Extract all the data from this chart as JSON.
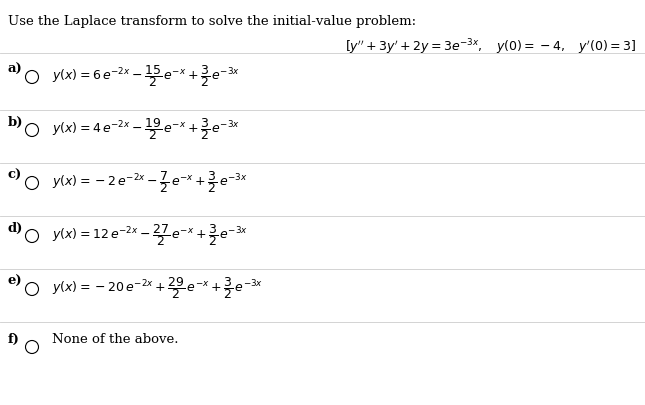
{
  "title": "Use the Laplace transform to solve the initial-value problem:",
  "problem": "$[y'' + 3y' + 2y = 3e^{-3x}, \\quad y(0) = -4, \\quad y'(0) = 3]$",
  "options": [
    {
      "label": "a)",
      "formula": "$y(x) = 6\\, e^{-2x} - \\dfrac{15}{2}\\, e^{-x} + \\dfrac{3}{2}\\, e^{-3x}$"
    },
    {
      "label": "b)",
      "formula": "$y(x) = 4\\, e^{-2x} - \\dfrac{19}{2}\\, e^{-x} + \\dfrac{3}{2}\\, e^{-3x}$"
    },
    {
      "label": "c)",
      "formula": "$y(x) = -2\\, e^{-2x} - \\dfrac{7}{2}\\, e^{-x} + \\dfrac{3}{2}\\, e^{-3x}$"
    },
    {
      "label": "d)",
      "formula": "$y(x) = 12\\, e^{-2x} - \\dfrac{27}{2}\\, e^{-x} + \\dfrac{3}{2}\\, e^{-3x}$"
    },
    {
      "label": "e)",
      "formula": "$y(x) = -20\\, e^{-2x} + \\dfrac{29}{2}\\, e^{-x} + \\dfrac{3}{2}\\, e^{-3x}$"
    },
    {
      "label": "f)",
      "formula": "None of the above."
    }
  ],
  "bg_color": "#ffffff",
  "text_color": "#000000",
  "divider_color": "#cccccc",
  "title_fontsize": 9.5,
  "problem_fontsize": 9.0,
  "label_fontsize": 9.5,
  "formula_fontsize": 9.0
}
